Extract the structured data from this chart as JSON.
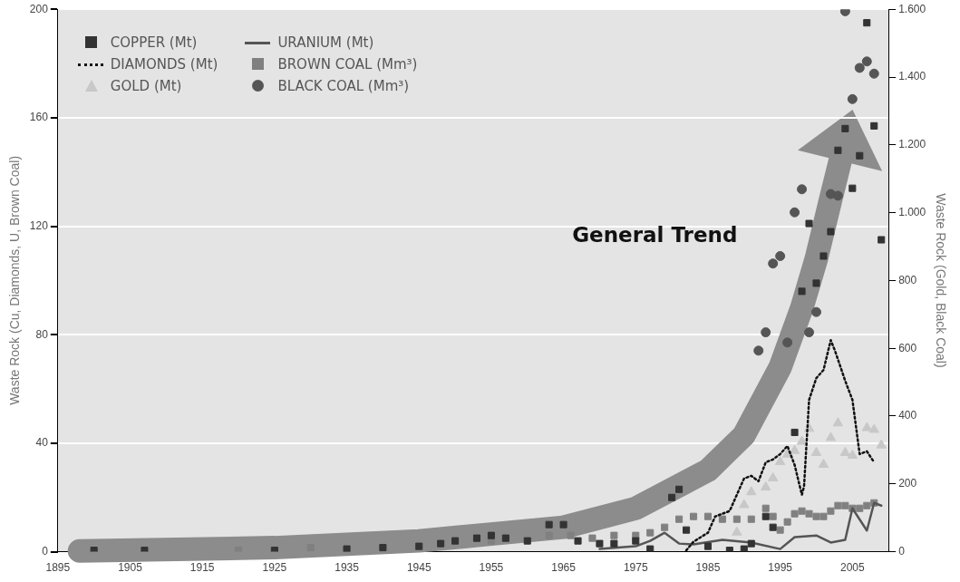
{
  "chart_data": {
    "type": "scatter",
    "ylabel": "Waste Rock (Cu, Diamonds, U, Brown Coal)",
    "y2label": "Waste Rock (Gold, Black Coal)",
    "xlim": [
      1895,
      2010
    ],
    "xticks": [
      1895,
      1905,
      1915,
      1925,
      1935,
      1945,
      1955,
      1965,
      1975,
      1985,
      1995,
      2005
    ],
    "ylim": [
      0,
      200
    ],
    "yticks": [
      0,
      40,
      80,
      120,
      160,
      200
    ],
    "y2lim": [
      0,
      1600
    ],
    "y2ticks": [
      0,
      200,
      400,
      600,
      800,
      {
        "value": 1000,
        "label": "1.000"
      },
      {
        "value": 1200,
        "label": "1.200"
      },
      {
        "value": 1400,
        "label": "1.400"
      },
      {
        "value": 1600,
        "label": "1.600"
      }
    ],
    "grid": "y",
    "legend": "top left",
    "annotations": [
      "General Trend"
    ],
    "series": [
      {
        "name": "COPPER (Mt)",
        "type": "scatter",
        "marker": "square",
        "color": "#333333",
        "x": [
          1900,
          1907,
          1925,
          1935,
          1940,
          1945,
          1948,
          1950,
          1953,
          1955,
          1957,
          1960,
          1963,
          1965,
          1967,
          1970,
          1972,
          1975,
          1977,
          1980,
          1981,
          1982,
          1985,
          1988,
          1990,
          1991,
          1993,
          1994,
          1997,
          1998,
          1999,
          2000,
          2001,
          2002,
          2003,
          2004,
          2005,
          2006,
          2007,
          2008,
          2009
        ],
        "values": [
          0.5,
          0.5,
          0.5,
          1,
          1.5,
          2,
          3,
          4,
          5,
          6,
          5,
          4,
          10,
          10,
          4,
          3,
          3,
          4,
          1,
          20,
          23,
          8,
          2,
          0.5,
          1,
          3,
          13,
          9,
          44,
          96,
          121,
          99,
          109,
          118,
          148,
          156,
          134,
          146,
          195,
          157,
          115
        ]
      },
      {
        "name": "DIAMONDS (Mt)",
        "type": "line",
        "line_style": "dotted",
        "color": "#111111",
        "x": [
          1982,
          1983,
          1985,
          1986,
          1988,
          1989,
          1990,
          1991,
          1992,
          1993,
          1994,
          1995,
          1996,
          1997,
          1998,
          1998.3,
          1999,
          2000,
          2001,
          2002,
          2002.6,
          2004,
          2005,
          2006,
          2007,
          2008
        ],
        "values": [
          0.5,
          3.7,
          7,
          13,
          15,
          21,
          27,
          28,
          26,
          33,
          34,
          36,
          39,
          32,
          21,
          24,
          56,
          64,
          67,
          78,
          74,
          63,
          56,
          36,
          37,
          33
        ]
      },
      {
        "name": "GOLD (Mt)",
        "type": "scatter",
        "marker": "triangle",
        "axis": "y2",
        "color": "#c8c8c8",
        "x": [
          1989,
          1990,
          1991,
          1993,
          1994,
          1995,
          1996,
          1997,
          1998,
          1999,
          2000,
          2001,
          2002,
          2003,
          2004,
          2005,
          2007,
          2008,
          2009
        ],
        "values": [
          57,
          138,
          176,
          190,
          217,
          265,
          287,
          298,
          325,
          363,
          292,
          257,
          336,
          379,
          292,
          284,
          365,
          360,
          314
        ]
      },
      {
        "name": "URANIUM (Mt)",
        "type": "line",
        "line_style": "solid",
        "color": "#555555",
        "x": [
          1970,
          1975,
          1977,
          1979,
          1981,
          1983,
          1987,
          1991,
          1995,
          1997,
          2000,
          2002,
          2004,
          2005,
          2007,
          2008,
          2009
        ],
        "values": [
          1,
          2,
          4,
          7,
          3,
          2.7,
          4.4,
          3.4,
          1,
          5.4,
          6,
          3.4,
          4.4,
          16,
          7.8,
          18,
          17
        ]
      },
      {
        "name": "BROWN COAL (Mm³)",
        "type": "scatter",
        "marker": "square",
        "color": "#808080",
        "x": [
          1920,
          1930,
          1955,
          1963,
          1966,
          1969,
          1972,
          1975,
          1977,
          1979,
          1981,
          1983,
          1985,
          1987,
          1989,
          1991,
          1993,
          1994,
          1995,
          1996,
          1997,
          1998,
          1999,
          2000,
          2001,
          2002,
          2003,
          2004,
          2005,
          2006,
          2007,
          2008
        ],
        "values": [
          0.5,
          1.5,
          4,
          6,
          6,
          5,
          6,
          6,
          7,
          9,
          12,
          13,
          13,
          12,
          12,
          12,
          16,
          13,
          8,
          11,
          14,
          15,
          14,
          13,
          13,
          15,
          17,
          17,
          16,
          16,
          17,
          18
        ]
      },
      {
        "name": "BLACK COAL (Mm³)",
        "type": "scatter",
        "marker": "circle",
        "axis": "y2",
        "color": "#555555",
        "x": [
          1992,
          1993,
          1994,
          1995,
          1996,
          1997,
          1998,
          1999,
          2000,
          2002,
          2003,
          2004,
          2005,
          2006,
          2007,
          2008
        ],
        "values": [
          593,
          647,
          850,
          872,
          617,
          1001,
          1069,
          647,
          707,
          1055,
          1050,
          1594,
          1335,
          1427,
          1446,
          1410
        ]
      },
      {
        "type": "line",
        "line_style": "solid",
        "color": "#8c8c8c",
        "x": [
          1898,
          1925,
          1945,
          1955,
          1965,
          1975,
          1985,
          1990,
          1995,
          1998,
          2000,
          2002,
          2003.3
        ],
        "values": [
          0.3,
          1.5,
          4,
          6.5,
          9,
          16,
          30,
          43,
          68,
          90,
          108,
          130,
          144
        ]
      }
    ]
  }
}
